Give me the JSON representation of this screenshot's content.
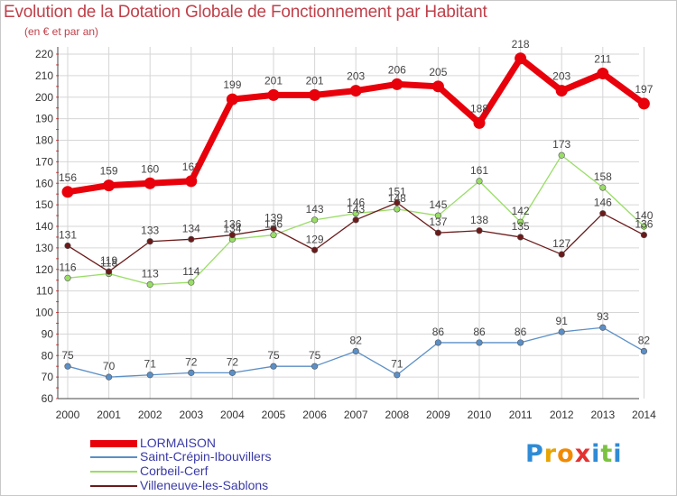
{
  "chart_data": {
    "type": "line",
    "title": "Evolution de la Dotation Globale de Fonctionnement par Habitant",
    "subtitle": "(en € et par an)",
    "categories": [
      "2000",
      "2001",
      "2002",
      "2003",
      "2004",
      "2005",
      "2006",
      "2007",
      "2008",
      "2009",
      "2010",
      "2011",
      "2012",
      "2013",
      "2014"
    ],
    "ylim": [
      60,
      220
    ],
    "yticks": [
      60,
      70,
      80,
      90,
      100,
      110,
      120,
      130,
      140,
      150,
      160,
      170,
      180,
      190,
      200,
      210,
      220
    ],
    "grid": true,
    "legend_position": "bottom-left",
    "series": [
      {
        "name": "LORMAISON",
        "color": "#e8000b",
        "bold": true,
        "values": [
          156,
          159,
          160,
          161,
          199,
          201,
          201,
          203,
          206,
          205,
          188,
          218,
          203,
          211,
          197
        ],
        "labels": [
          "156",
          "159",
          "160",
          "161",
          "199",
          "201",
          "201",
          "203",
          "206",
          "205",
          "188",
          "218",
          "203",
          "211",
          "197"
        ]
      },
      {
        "name": "Saint-Crépin-Ibouvillers",
        "color": "#5b8fc7",
        "bold": false,
        "values": [
          75,
          70,
          71,
          72,
          72,
          75,
          75,
          82,
          71,
          86,
          86,
          86,
          91,
          93,
          82
        ],
        "labels": [
          "75",
          "70",
          "71",
          "72",
          "72",
          "75",
          "75",
          "82",
          "71",
          "86",
          "86",
          "86",
          "91",
          "93",
          "82"
        ]
      },
      {
        "name": "Corbeil-Cerf",
        "color": "#99dd66",
        "bold": false,
        "values": [
          116,
          118,
          113,
          114,
          134,
          136,
          143,
          146,
          148,
          145,
          161,
          142,
          173,
          158,
          140
        ],
        "labels": [
          "116",
          "118",
          "113",
          "114",
          "134",
          "136",
          "143",
          "146",
          "148",
          "145",
          "161",
          "142",
          "173",
          "158",
          "140"
        ]
      },
      {
        "name": "Villeneuve-les-Sablons",
        "color": "#6b1a1a",
        "bold": false,
        "values": [
          131,
          119,
          133,
          134,
          136,
          139,
          129,
          143,
          151,
          137,
          138,
          135,
          127,
          146,
          136
        ],
        "labels": [
          "131",
          "119",
          "133",
          "134",
          "136",
          "139",
          "129",
          "143",
          "151",
          "137",
          "138",
          "135",
          "127",
          "146",
          "136"
        ]
      }
    ]
  },
  "brand": {
    "text": "Proxiti",
    "letters": [
      "P",
      "r",
      "o",
      "x",
      "i",
      "t",
      "i"
    ],
    "colors": [
      "#2e8bd6",
      "#e8a400",
      "#f28a00",
      "#e53030",
      "#2e8bd6",
      "#7cc242",
      "#2e8bd6"
    ]
  }
}
